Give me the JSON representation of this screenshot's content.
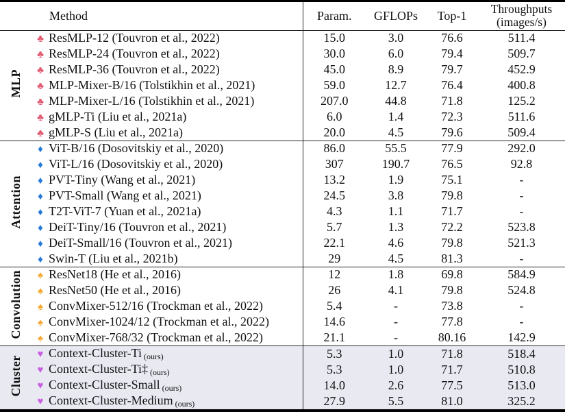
{
  "header": {
    "method": "Method",
    "param": "Param.",
    "gflops": "GFLOPs",
    "top1": "Top-1",
    "throughputs_line1": "Throughputs",
    "throughputs_line2": "(images/s)"
  },
  "colors": {
    "highlight_bg": "#e9e9f2",
    "mlp_symbol": "#e25c72",
    "attention_symbol": "#2579d8",
    "convolution_symbol": "#f6a72c",
    "cluster_symbol": "#c95fe0",
    "rule": "#222222"
  },
  "sections": [
    {
      "group": "MLP",
      "symbol": "♣",
      "symbol_name": "club-suit-icon",
      "symbol_color": "#e25c72",
      "highlight": false,
      "rows": [
        {
          "method": "ResMLP-12 (Touvron et al., 2022)",
          "param": "15.0",
          "gflops": "3.0",
          "top1": "76.6",
          "throughput": "511.4"
        },
        {
          "method": "ResMLP-24 (Touvron et al., 2022)",
          "param": "30.0",
          "gflops": "6.0",
          "top1": "79.4",
          "throughput": "509.7"
        },
        {
          "method": "ResMLP-36 (Touvron et al., 2022)",
          "param": "45.0",
          "gflops": "8.9",
          "top1": "79.7",
          "throughput": "452.9"
        },
        {
          "method": "MLP-Mixer-B/16 (Tolstikhin et al., 2021)",
          "param": "59.0",
          "gflops": "12.7",
          "top1": "76.4",
          "throughput": "400.8"
        },
        {
          "method": "MLP-Mixer-L/16 (Tolstikhin et al., 2021)",
          "param": "207.0",
          "gflops": "44.8",
          "top1": "71.8",
          "throughput": "125.2"
        },
        {
          "method": "gMLP-Ti (Liu et al., 2021a)",
          "param": "6.0",
          "gflops": "1.4",
          "top1": "72.3",
          "throughput": "511.6"
        },
        {
          "method": "gMLP-S (Liu et al., 2021a)",
          "param": "20.0",
          "gflops": "4.5",
          "top1": "79.6",
          "throughput": "509.4"
        }
      ]
    },
    {
      "group": "Attention",
      "symbol": "♦",
      "symbol_name": "diamond-suit-icon",
      "symbol_color": "#2579d8",
      "highlight": false,
      "rows": [
        {
          "method": "ViT-B/16 (Dosovitskiy et al., 2020)",
          "param": "86.0",
          "gflops": "55.5",
          "top1": "77.9",
          "throughput": "292.0"
        },
        {
          "method": "ViT-L/16 (Dosovitskiy et al., 2020)",
          "param": "307",
          "gflops": "190.7",
          "top1": "76.5",
          "throughput": "92.8"
        },
        {
          "method": "PVT-Tiny (Wang et al., 2021)",
          "param": "13.2",
          "gflops": "1.9",
          "top1": "75.1",
          "throughput": "-"
        },
        {
          "method": "PVT-Small (Wang et al., 2021)",
          "param": "24.5",
          "gflops": "3.8",
          "top1": "79.8",
          "throughput": "-"
        },
        {
          "method": "T2T-ViT-7 (Yuan et al., 2021a)",
          "param": "4.3",
          "gflops": "1.1",
          "top1": "71.7",
          "throughput": "-"
        },
        {
          "method": "DeiT-Tiny/16 (Touvron et al., 2021)",
          "param": "5.7",
          "gflops": "1.3",
          "top1": "72.2",
          "throughput": "523.8"
        },
        {
          "method": "DeiT-Small/16 (Touvron et al., 2021)",
          "param": "22.1",
          "gflops": "4.6",
          "top1": "79.8",
          "throughput": "521.3"
        },
        {
          "method": "Swin-T (Liu et al., 2021b)",
          "param": "29",
          "gflops": "4.5",
          "top1": "81.3",
          "throughput": "-"
        }
      ]
    },
    {
      "group": "Convolution",
      "symbol": "♠",
      "symbol_name": "spade-suit-icon",
      "symbol_color": "#f6a72c",
      "highlight": false,
      "rows": [
        {
          "method": "ResNet18 (He et al., 2016)",
          "param": "12",
          "gflops": "1.8",
          "top1": "69.8",
          "throughput": "584.9"
        },
        {
          "method": "ResNet50 (He et al., 2016)",
          "param": "26",
          "gflops": "4.1",
          "top1": "79.8",
          "throughput": "524.8"
        },
        {
          "method": "ConvMixer-512/16 (Trockman et al., 2022)",
          "param": "5.4",
          "gflops": "-",
          "top1": "73.8",
          "throughput": "-"
        },
        {
          "method": "ConvMixer-1024/12 (Trockman et al., 2022)",
          "param": "14.6",
          "gflops": "-",
          "top1": "77.8",
          "throughput": "-"
        },
        {
          "method": "ConvMixer-768/32 (Trockman et al., 2022)",
          "param": "21.1",
          "gflops": "-",
          "top1": "80.16",
          "throughput": "142.9"
        }
      ]
    },
    {
      "group": "Cluster",
      "symbol": "♥",
      "symbol_name": "heart-suit-icon",
      "symbol_color": "#c95fe0",
      "highlight": true,
      "rows": [
        {
          "method": "Context-Cluster-Ti",
          "suffix": "(ours)",
          "param": "5.3",
          "gflops": "1.0",
          "top1": "71.8",
          "throughput": "518.4"
        },
        {
          "method": "Context-Cluster-Ti‡",
          "suffix": "(ours)",
          "param": "5.3",
          "gflops": "1.0",
          "top1": "71.7",
          "throughput": "510.8"
        },
        {
          "method": "Context-Cluster-Small",
          "suffix": "(ours)",
          "param": "14.0",
          "gflops": "2.6",
          "top1": "77.5",
          "throughput": "513.0"
        },
        {
          "method": "Context-Cluster-Medium",
          "suffix": "(ours)",
          "param": "27.9",
          "gflops": "5.5",
          "top1": "81.0",
          "throughput": "325.2"
        }
      ]
    }
  ]
}
